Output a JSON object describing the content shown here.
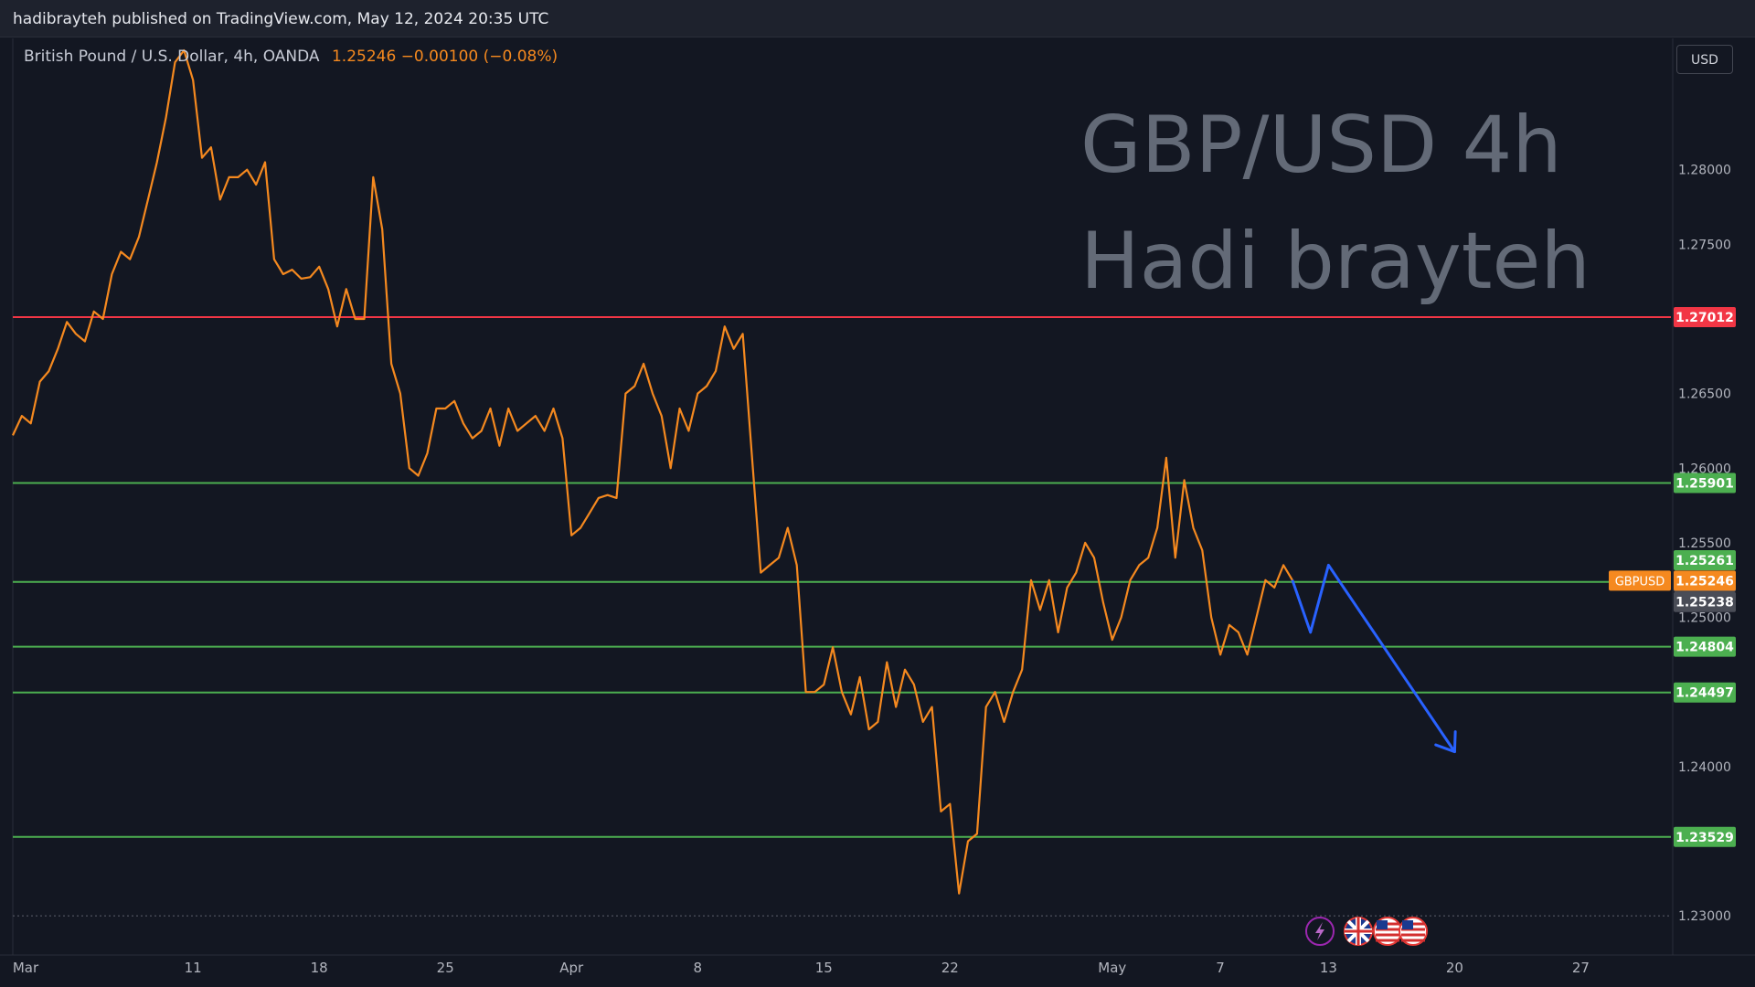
{
  "publish_info": "hadibrayteh published on TradingView.com, May 12, 2024 20:35 UTC",
  "legend": {
    "symbol": "British Pound / U.S. Dollar, 4h, OANDA",
    "values": "1.25246  −0.00100 (−0.08%)"
  },
  "currency_button": "USD",
  "watermark": {
    "line1": "GBP/USD 4h",
    "line2": "Hadi brayteh"
  },
  "colors": {
    "background": "#131722",
    "price_line": "#f5891f",
    "resistance": "#f23645",
    "support": "#4caf50",
    "projection": "#2962ff",
    "watermark": "#636a77"
  },
  "chart_data": {
    "type": "line",
    "title": "",
    "xlabel": "",
    "ylabel": "",
    "ylim": [
      1.2275,
      1.2888
    ],
    "y_ticks": [
      "1.23000",
      "1.24000",
      "1.25000",
      "1.25500",
      "1.26000",
      "1.26500",
      "1.27500",
      "1.28000"
    ],
    "x_ticks": [
      {
        "label": "Mar",
        "day": 0
      },
      {
        "label": "11",
        "day": 10
      },
      {
        "label": "18",
        "day": 17
      },
      {
        "label": "25",
        "day": 24
      },
      {
        "label": "Apr",
        "day": 31
      },
      {
        "label": "8",
        "day": 38
      },
      {
        "label": "15",
        "day": 45
      },
      {
        "label": "22",
        "day": 52
      },
      {
        "label": "May",
        "day": 61
      },
      {
        "label": "7",
        "day": 67
      },
      {
        "label": "13",
        "day": 73
      },
      {
        "label": "20",
        "day": 80
      },
      {
        "label": "27",
        "day": 87
      }
    ],
    "xlim": [
      0,
      92
    ],
    "series": [
      {
        "points": [
          [
            0,
            1.2622
          ],
          [
            0.5,
            1.2635
          ],
          [
            1,
            1.263
          ],
          [
            1.5,
            1.2658
          ],
          [
            2,
            1.2665
          ],
          [
            2.5,
            1.268
          ],
          [
            3,
            1.2698
          ],
          [
            3.5,
            1.269
          ],
          [
            4,
            1.2685
          ],
          [
            4.5,
            1.2705
          ],
          [
            5,
            1.27
          ],
          [
            5.5,
            1.273
          ],
          [
            6,
            1.2745
          ],
          [
            6.5,
            1.274
          ],
          [
            7,
            1.2755
          ],
          [
            7.5,
            1.278
          ],
          [
            8,
            1.2805
          ],
          [
            8.5,
            1.2835
          ],
          [
            9,
            1.2872
          ],
          [
            9.5,
            1.288
          ],
          [
            10,
            1.286
          ],
          [
            10.5,
            1.2808
          ],
          [
            11,
            1.2815
          ],
          [
            11.5,
            1.278
          ],
          [
            12,
            1.2795
          ],
          [
            12.5,
            1.2795
          ],
          [
            13,
            1.28
          ],
          [
            13.5,
            1.279
          ],
          [
            14,
            1.2805
          ],
          [
            14.5,
            1.274
          ],
          [
            15,
            1.273
          ],
          [
            15.5,
            1.2733
          ],
          [
            16,
            1.2727
          ],
          [
            16.5,
            1.2728
          ],
          [
            17,
            1.2735
          ],
          [
            17.5,
            1.272
          ],
          [
            18,
            1.2695
          ],
          [
            18.5,
            1.272
          ],
          [
            19,
            1.27
          ],
          [
            19.5,
            1.27
          ],
          [
            20,
            1.2795
          ],
          [
            20.5,
            1.276
          ],
          [
            21,
            1.267
          ],
          [
            21.5,
            1.265
          ],
          [
            22,
            1.26
          ],
          [
            22.5,
            1.2595
          ],
          [
            23,
            1.261
          ],
          [
            23.5,
            1.264
          ],
          [
            24,
            1.264
          ],
          [
            24.5,
            1.2645
          ],
          [
            25,
            1.263
          ],
          [
            25.5,
            1.262
          ],
          [
            26,
            1.2625
          ],
          [
            26.5,
            1.264
          ],
          [
            27,
            1.2615
          ],
          [
            27.5,
            1.264
          ],
          [
            28,
            1.2625
          ],
          [
            28.5,
            1.263
          ],
          [
            29,
            1.2635
          ],
          [
            29.5,
            1.2625
          ],
          [
            30,
            1.264
          ],
          [
            30.5,
            1.262
          ],
          [
            31,
            1.2555
          ],
          [
            31.5,
            1.256
          ],
          [
            32,
            1.257
          ],
          [
            32.5,
            1.258
          ],
          [
            33,
            1.2582
          ],
          [
            33.5,
            1.258
          ],
          [
            34,
            1.265
          ],
          [
            34.5,
            1.2655
          ],
          [
            35,
            1.267
          ],
          [
            35.5,
            1.265
          ],
          [
            36,
            1.2635
          ],
          [
            36.5,
            1.26
          ],
          [
            37,
            1.264
          ],
          [
            37.5,
            1.2625
          ],
          [
            38,
            1.265
          ],
          [
            38.5,
            1.2655
          ],
          [
            39,
            1.2665
          ],
          [
            39.5,
            1.2695
          ],
          [
            40,
            1.268
          ],
          [
            40.5,
            1.269
          ],
          [
            41,
            1.261
          ],
          [
            41.5,
            1.253
          ],
          [
            42,
            1.2535
          ],
          [
            42.5,
            1.254
          ],
          [
            43,
            1.256
          ],
          [
            43.5,
            1.2535
          ],
          [
            44,
            1.245
          ],
          [
            44.5,
            1.245
          ],
          [
            45,
            1.2455
          ],
          [
            45.5,
            1.248
          ],
          [
            46,
            1.245
          ],
          [
            46.5,
            1.2435
          ],
          [
            47,
            1.246
          ],
          [
            47.5,
            1.2425
          ],
          [
            48,
            1.243
          ],
          [
            48.5,
            1.247
          ],
          [
            49,
            1.244
          ],
          [
            49.5,
            1.2465
          ],
          [
            50,
            1.2455
          ],
          [
            50.5,
            1.243
          ],
          [
            51,
            1.244
          ],
          [
            51.5,
            1.237
          ],
          [
            52,
            1.2375
          ],
          [
            52.5,
            1.2315
          ],
          [
            53,
            1.235
          ],
          [
            53.5,
            1.2355
          ],
          [
            54,
            1.244
          ],
          [
            54.5,
            1.245
          ],
          [
            55,
            1.243
          ],
          [
            55.5,
            1.245
          ],
          [
            56,
            1.2465
          ],
          [
            56.5,
            1.2525
          ],
          [
            57,
            1.2505
          ],
          [
            57.5,
            1.2525
          ],
          [
            58,
            1.249
          ],
          [
            58.5,
            1.252
          ],
          [
            59,
            1.253
          ],
          [
            59.5,
            1.255
          ],
          [
            60,
            1.254
          ],
          [
            60.5,
            1.251
          ],
          [
            61,
            1.2485
          ],
          [
            61.5,
            1.25
          ],
          [
            62,
            1.2525
          ],
          [
            62.5,
            1.2535
          ],
          [
            63,
            1.254
          ],
          [
            63.5,
            1.256
          ],
          [
            64,
            1.2607
          ],
          [
            64.5,
            1.254
          ],
          [
            65,
            1.2592
          ],
          [
            65.5,
            1.256
          ],
          [
            66,
            1.2545
          ],
          [
            66.5,
            1.25
          ],
          [
            67,
            1.2475
          ],
          [
            67.5,
            1.2495
          ],
          [
            68,
            1.249
          ],
          [
            68.5,
            1.2475
          ],
          [
            69,
            1.25
          ],
          [
            69.5,
            1.2525
          ],
          [
            70,
            1.252
          ],
          [
            70.5,
            1.2535
          ],
          [
            71,
            1.2525
          ]
        ]
      }
    ],
    "projection": [
      [
        71,
        1.2525
      ],
      [
        72,
        1.249
      ],
      [
        73,
        1.2535
      ],
      [
        80,
        1.241
      ]
    ],
    "horizontal_levels": [
      {
        "label": "1.27012",
        "value": 1.27012,
        "kind": "resistance"
      },
      {
        "label": "1.25901",
        "value": 1.25901,
        "kind": "support"
      },
      {
        "label": "1.25238",
        "value": 1.25238,
        "kind": "support"
      },
      {
        "label": "1.24804",
        "value": 1.24804,
        "kind": "support"
      },
      {
        "label": "1.24497",
        "value": 1.24497,
        "kind": "support"
      },
      {
        "label": "1.23529",
        "value": 1.23529,
        "kind": "support"
      }
    ],
    "price_labels": [
      {
        "label": "1.25261",
        "value": 1.25261,
        "kind": "support"
      },
      {
        "label": "1.25246",
        "value": 1.25246,
        "kind": "current",
        "tag": "GBPUSD"
      },
      {
        "label": "1.25238",
        "value": 1.25238,
        "kind": "gray"
      }
    ],
    "dotted_level": 1.23,
    "grid": false,
    "event_icons": [
      "lightning-icon",
      "uk-flag-icon",
      "us-flag-icon",
      "us-flag-icon"
    ]
  }
}
